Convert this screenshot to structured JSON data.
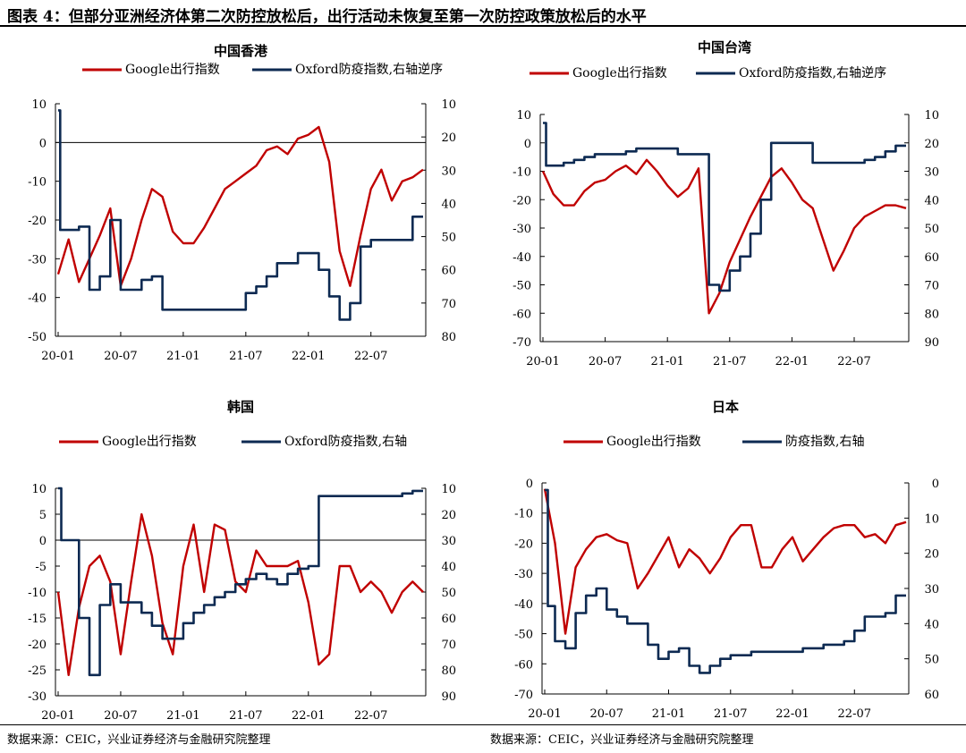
{
  "figure": {
    "title": "图表 4：但部分亚洲经济体第二次防控放松后，出行活动未恢复至第一次防控政策放松后的水平",
    "source_left": "数据来源：CEIC，兴业证券经济与金融研究院整理",
    "source_right": "数据来源：CEIC，兴业证券经济与金融研究院整理"
  },
  "colors": {
    "google": "#c00000",
    "oxford": "#0d2a52",
    "axis": "#000000"
  },
  "chart_data": [
    {
      "type": "line",
      "title": "中国香港",
      "x_tick_labels": [
        "20-01",
        "20-07",
        "21-01",
        "21-07",
        "22-01",
        "22-07"
      ],
      "x_range": [
        "2020-01",
        "2022-12"
      ],
      "ylim": [
        -50,
        10
      ],
      "y_ticks": [
        10,
        0,
        -10,
        -20,
        -30,
        -40,
        -50
      ],
      "y2lim": [
        10,
        80
      ],
      "y2_ticks": [
        10,
        20,
        30,
        40,
        50,
        60,
        70,
        80
      ],
      "y2_inverted": true,
      "zero_line": true,
      "legend_position": "top",
      "series": [
        {
          "name": "Google出行指数",
          "axis": "left",
          "color": "#c00000",
          "x": [
            0,
            1,
            2,
            3,
            4,
            5,
            6,
            7,
            8,
            9,
            10,
            11,
            12,
            13,
            14,
            15,
            16,
            17,
            18,
            19,
            20,
            21,
            22,
            23,
            24,
            25,
            26,
            27,
            28,
            29,
            30,
            31,
            32,
            33,
            34,
            35
          ],
          "values": [
            -34,
            -25,
            -36,
            -30,
            -24,
            -17,
            -37,
            -30,
            -20,
            -12,
            -14,
            -23,
            -26,
            -26,
            -22,
            -17,
            -12,
            -10,
            -8,
            -6,
            -2,
            -1,
            -3,
            1,
            2,
            4,
            -5,
            -28,
            -37,
            -24,
            -12,
            -7,
            -15,
            -10,
            -9,
            -7
          ]
        },
        {
          "name": "Oxford防疫指数,右轴逆序",
          "axis": "right",
          "color": "#0d2a52",
          "x": [
            0,
            0.2,
            1,
            2,
            3,
            4,
            5,
            6,
            7,
            8,
            9,
            10,
            11,
            12,
            13,
            14,
            15,
            16,
            17,
            18,
            19,
            20,
            21,
            22,
            23,
            24,
            25,
            26,
            27,
            28,
            29,
            30,
            31,
            32,
            33,
            34,
            35
          ],
          "values": [
            12,
            48,
            48,
            47,
            66,
            62,
            45,
            66,
            66,
            63,
            62,
            72,
            72,
            72,
            72,
            72,
            72,
            72,
            72,
            67,
            65,
            62,
            58,
            58,
            55,
            55,
            60,
            68,
            75,
            70,
            53,
            51,
            51,
            51,
            51,
            44,
            44
          ]
        }
      ]
    },
    {
      "type": "line",
      "title": "中国台湾",
      "x_tick_labels": [
        "20-01",
        "20-07",
        "21-01",
        "21-07",
        "22-01",
        "22-07"
      ],
      "x_range": [
        "2020-01",
        "2022-12"
      ],
      "ylim": [
        -70,
        10
      ],
      "y_ticks": [
        10,
        0,
        -10,
        -20,
        -30,
        -40,
        -50,
        -60,
        -70
      ],
      "y2lim": [
        10,
        90
      ],
      "y2_ticks": [
        10,
        20,
        30,
        40,
        50,
        60,
        70,
        80,
        90
      ],
      "y2_inverted": true,
      "zero_line": false,
      "legend_position": "top",
      "series": [
        {
          "name": "Google出行指数",
          "axis": "left",
          "color": "#c00000",
          "x": [
            0,
            1,
            2,
            3,
            4,
            5,
            6,
            7,
            8,
            9,
            10,
            11,
            12,
            13,
            14,
            15,
            16,
            17,
            18,
            19,
            20,
            21,
            22,
            23,
            24,
            25,
            26,
            27,
            28,
            29,
            30,
            31,
            32,
            33,
            34,
            35
          ],
          "values": [
            -10,
            -18,
            -22,
            -22,
            -17,
            -14,
            -13,
            -10,
            -8,
            -11,
            -6,
            -10,
            -15,
            -19,
            -16,
            -9,
            -60,
            -53,
            -42,
            -34,
            -26,
            -19,
            -12,
            -9,
            -14,
            -20,
            -23,
            -34,
            -45,
            -38,
            -30,
            -26,
            -24,
            -22,
            -22,
            -23
          ]
        },
        {
          "name": "Oxford防疫指数,右轴逆序",
          "axis": "right",
          "color": "#0d2a52",
          "x": [
            0,
            0.3,
            1,
            2,
            3,
            4,
            5,
            6,
            7,
            8,
            9,
            10,
            11,
            12,
            13,
            14,
            15,
            16,
            17,
            18,
            19,
            20,
            21,
            22,
            23,
            24,
            25,
            26,
            27,
            28,
            29,
            30,
            31,
            32,
            33,
            34,
            35
          ],
          "values": [
            13,
            28,
            28,
            27,
            26,
            25,
            24,
            24,
            24,
            23,
            22,
            22,
            22,
            22,
            24,
            24,
            24,
            70,
            72,
            65,
            60,
            52,
            40,
            20,
            20,
            20,
            20,
            27,
            27,
            27,
            27,
            27,
            26,
            25,
            23,
            21,
            21
          ]
        }
      ]
    },
    {
      "type": "line",
      "title": "韩国",
      "x_tick_labels": [
        "20-01",
        "20-07",
        "21-01",
        "21-07",
        "22-01",
        "22-07"
      ],
      "x_range": [
        "2020-01",
        "2022-12"
      ],
      "ylim": [
        -30,
        10
      ],
      "y_ticks": [
        10,
        5,
        0,
        -5,
        -10,
        -15,
        -20,
        -25,
        -30
      ],
      "y2lim": [
        10,
        90
      ],
      "y2_ticks": [
        10,
        20,
        30,
        40,
        50,
        60,
        70,
        80,
        90
      ],
      "y2_inverted": false,
      "zero_line": true,
      "legend_position": "top",
      "series": [
        {
          "name": "Google出行指数",
          "axis": "left",
          "color": "#c00000",
          "x": [
            0,
            1,
            2,
            3,
            4,
            5,
            6,
            7,
            8,
            9,
            10,
            11,
            12,
            13,
            14,
            15,
            16,
            17,
            18,
            19,
            20,
            21,
            22,
            23,
            24,
            25,
            26,
            27,
            28,
            29,
            30,
            31,
            32,
            33,
            34,
            35
          ],
          "values": [
            -10,
            -26,
            -13,
            -5,
            -3,
            -8,
            -22,
            -8,
            5,
            -3,
            -16,
            -22,
            -5,
            3,
            -10,
            3,
            2,
            -8,
            -10,
            -2,
            -5,
            -5,
            -5,
            -4,
            -12,
            -24,
            -22,
            -5,
            -5,
            -10,
            -8,
            -10,
            -14,
            -10,
            -8,
            -10
          ]
        },
        {
          "name": "Oxford防疫指数,右轴",
          "axis": "right",
          "color": "#0d2a52",
          "x": [
            0,
            0.3,
            1,
            2,
            3,
            4,
            5,
            6,
            7,
            8,
            9,
            10,
            11,
            12,
            13,
            14,
            15,
            16,
            17,
            18,
            19,
            20,
            21,
            22,
            23,
            24,
            25,
            26,
            27,
            28,
            29,
            30,
            31,
            32,
            33,
            34,
            35
          ],
          "values": [
            10,
            30,
            30,
            60,
            82,
            55,
            47,
            54,
            54,
            58,
            63,
            68,
            68,
            62,
            58,
            55,
            52,
            50,
            47,
            45,
            43,
            45,
            47,
            43,
            41,
            40,
            13,
            13,
            13,
            13,
            13,
            13,
            13,
            13,
            12,
            11,
            11
          ]
        }
      ]
    },
    {
      "type": "line",
      "title": "日本",
      "x_tick_labels": [
        "20-01",
        "20-07",
        "21-01",
        "21-07",
        "22-01",
        "22-07"
      ],
      "x_range": [
        "2020-01",
        "2022-12"
      ],
      "ylim": [
        -70,
        0
      ],
      "y_ticks": [
        0,
        -10,
        -20,
        -30,
        -40,
        -50,
        -60,
        -70
      ],
      "y2lim": [
        0,
        60
      ],
      "y2_ticks": [
        0,
        10,
        20,
        30,
        40,
        50,
        60
      ],
      "y2_inverted": false,
      "zero_line": false,
      "legend_position": "top",
      "series": [
        {
          "name": "Google出行指数",
          "axis": "left",
          "color": "#c00000",
          "x": [
            0,
            1,
            2,
            3,
            4,
            5,
            6,
            7,
            8,
            9,
            10,
            11,
            12,
            13,
            14,
            15,
            16,
            17,
            18,
            19,
            20,
            21,
            22,
            23,
            24,
            25,
            26,
            27,
            28,
            29,
            30,
            31,
            32,
            33,
            34,
            35
          ],
          "values": [
            -2,
            -20,
            -50,
            -28,
            -22,
            -18,
            -17,
            -19,
            -20,
            -35,
            -30,
            -24,
            -18,
            -28,
            -22,
            -25,
            -30,
            -25,
            -18,
            -14,
            -14,
            -28,
            -28,
            -22,
            -18,
            -26,
            -22,
            -18,
            -15,
            -14,
            -14,
            -18,
            -17,
            -20,
            -14,
            -13
          ]
        },
        {
          "name": "防疫指数,右轴",
          "axis": "right",
          "color": "#0d2a52",
          "x": [
            0,
            0.3,
            1,
            2,
            3,
            4,
            5,
            6,
            7,
            8,
            9,
            10,
            11,
            12,
            13,
            14,
            15,
            16,
            17,
            18,
            19,
            20,
            21,
            22,
            23,
            24,
            25,
            26,
            27,
            28,
            29,
            30,
            31,
            32,
            33,
            34,
            35
          ],
          "values": [
            2,
            35,
            45,
            47,
            37,
            32,
            30,
            36,
            38,
            40,
            40,
            46,
            50,
            48,
            47,
            52,
            54,
            52,
            50,
            49,
            49,
            48,
            48,
            48,
            48,
            48,
            47,
            47,
            46,
            46,
            45,
            42,
            38,
            38,
            37,
            32,
            32
          ]
        }
      ]
    }
  ]
}
